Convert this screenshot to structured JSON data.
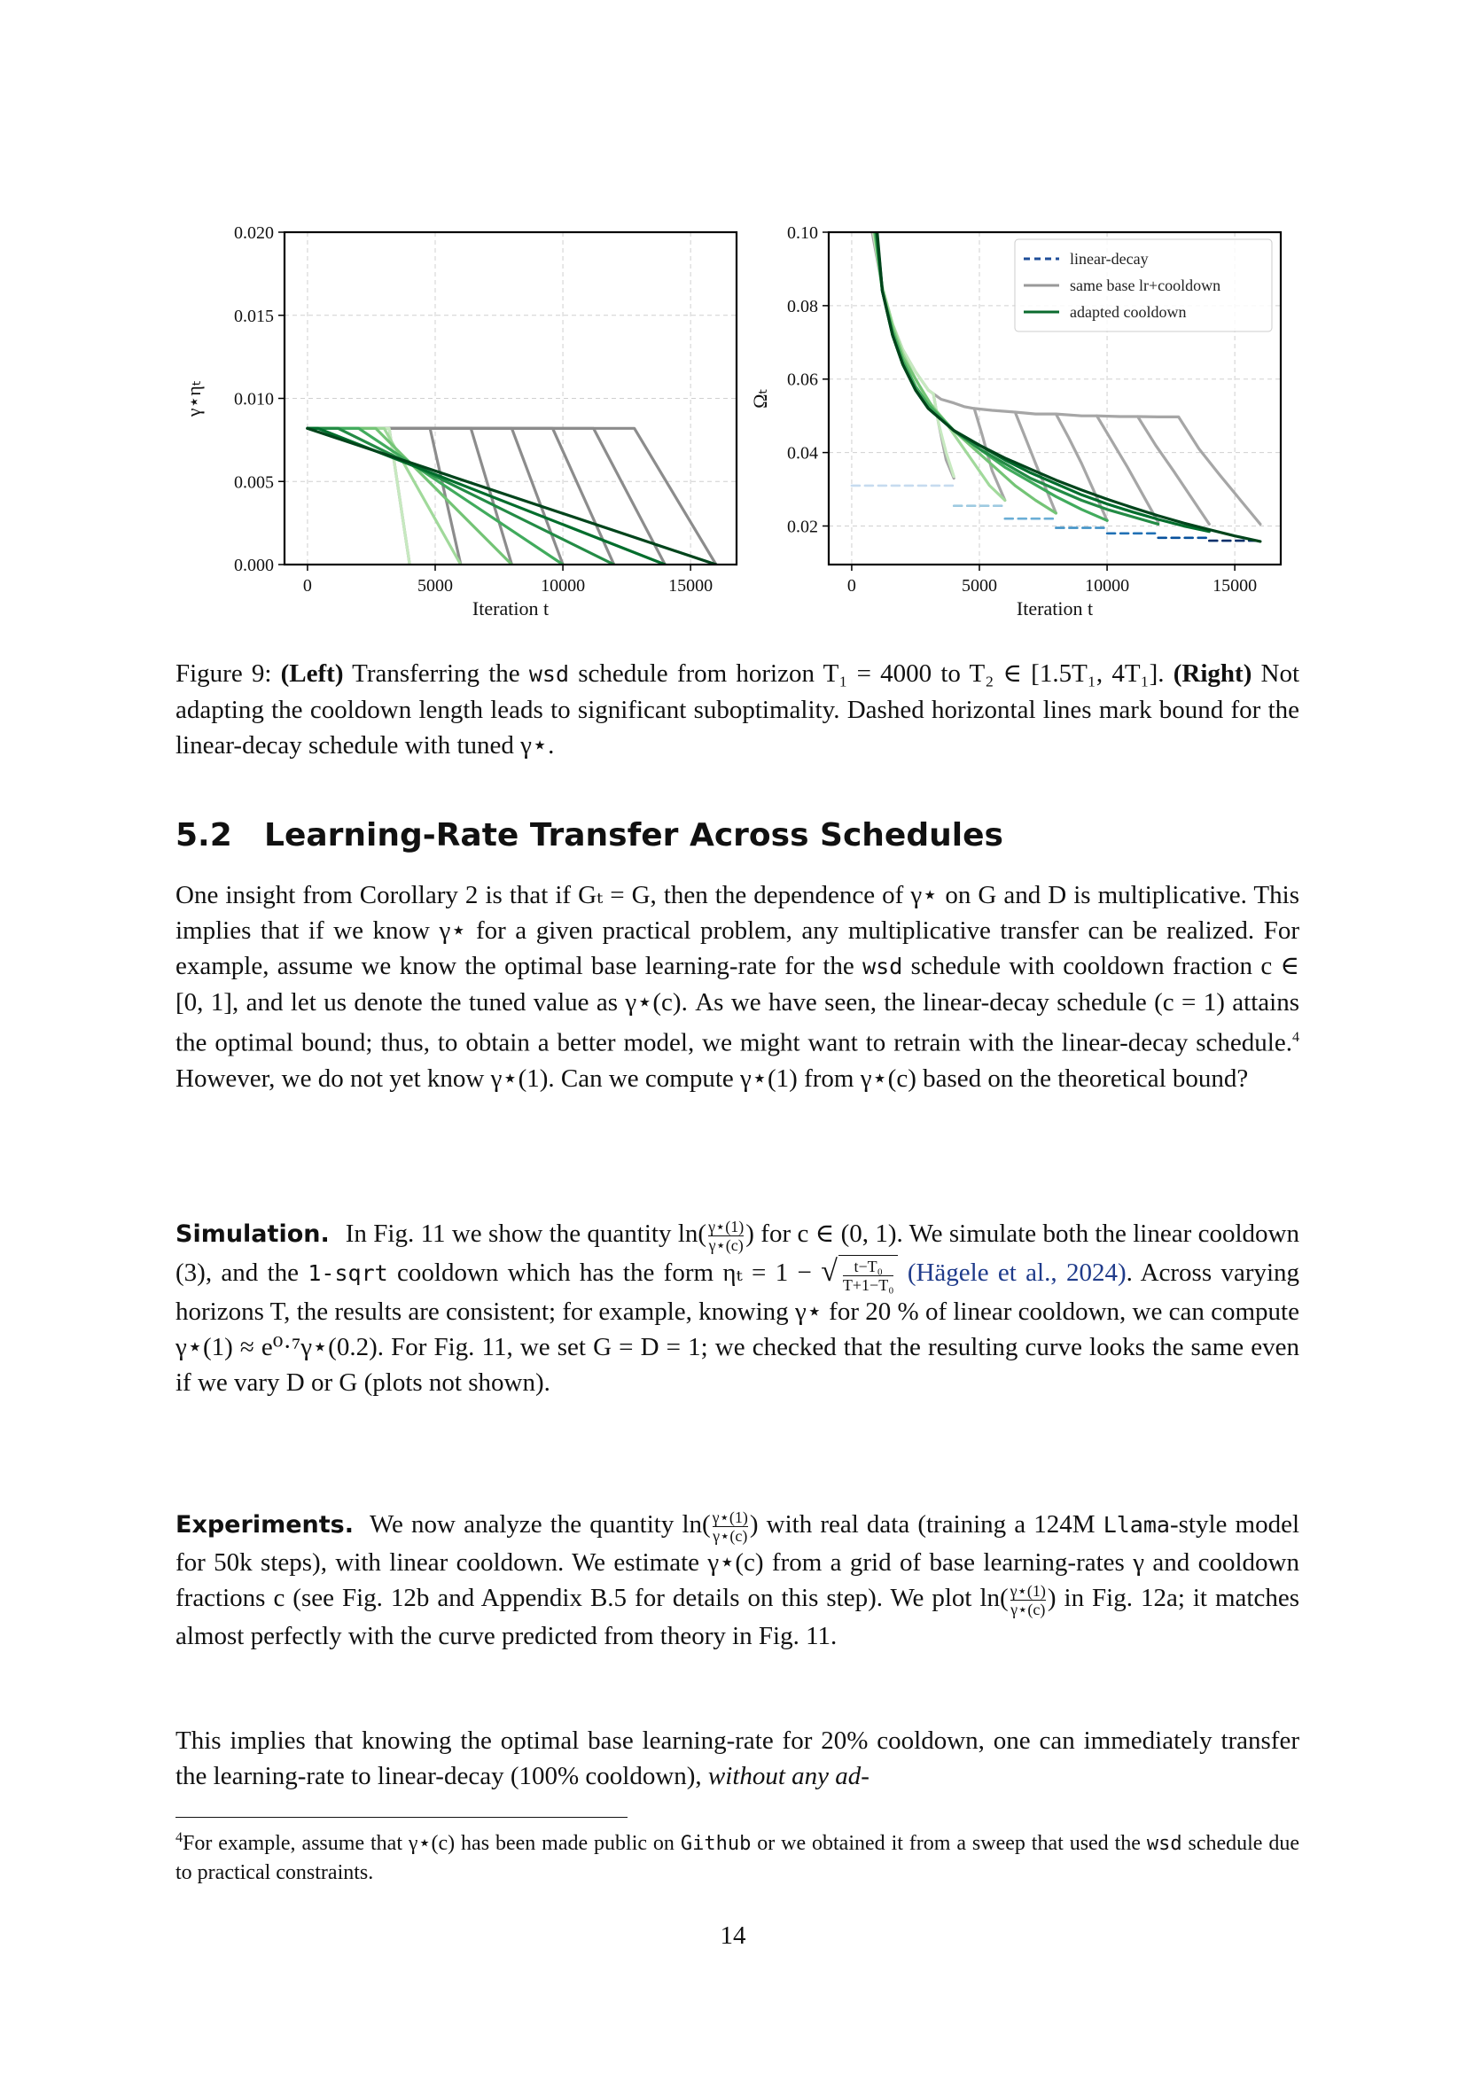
{
  "figure": {
    "caption": {
      "label": "Figure 9:",
      "left_tag": "(Left)",
      "left_text_1": "Transferring the",
      "left_code": "wsd",
      "left_text_2": "schedule from horizon T₁ = 4000 to T₂ ∈ [1.5T₁, 4T₁].",
      "right_tag": "(Right)",
      "right_text": "Not adapting the cooldown length leads to significant suboptimality. Dashed horizontal lines mark bound for the linear-decay schedule with tuned γ⋆."
    }
  },
  "chart_data": [
    {
      "type": "line",
      "panel": "left",
      "ylabel": "γ⋆ηₜ",
      "xlabel": "Iteration t",
      "xlim": [
        -900,
        16800
      ],
      "ylim": [
        0.0,
        0.02
      ],
      "xticks": [
        0,
        5000,
        10000,
        15000
      ],
      "xtick_labels": [
        "0",
        "5000",
        "10000",
        "15000"
      ],
      "yticks": [
        0.0,
        0.005,
        0.01,
        0.015,
        0.02
      ],
      "ytick_labels": [
        "0.000",
        "0.005",
        "0.010",
        "0.015",
        "0.020"
      ],
      "grid": true,
      "series": [
        {
          "group": "gray",
          "color": "#8c8c8c",
          "x": [
            0,
            3200,
            4000
          ],
          "y": [
            0.0082,
            0.0082,
            0.0
          ]
        },
        {
          "group": "gray",
          "color": "#8c8c8c",
          "x": [
            0,
            4800,
            6000
          ],
          "y": [
            0.0082,
            0.0082,
            0.0
          ]
        },
        {
          "group": "gray",
          "color": "#8c8c8c",
          "x": [
            0,
            6400,
            8000
          ],
          "y": [
            0.0082,
            0.0082,
            0.0
          ]
        },
        {
          "group": "gray",
          "color": "#8c8c8c",
          "x": [
            0,
            8000,
            10000
          ],
          "y": [
            0.0082,
            0.0082,
            0.0
          ]
        },
        {
          "group": "gray",
          "color": "#8c8c8c",
          "x": [
            0,
            9600,
            12000
          ],
          "y": [
            0.0082,
            0.0082,
            0.0
          ]
        },
        {
          "group": "gray",
          "color": "#8c8c8c",
          "x": [
            0,
            11200,
            14000
          ],
          "y": [
            0.0082,
            0.0082,
            0.0
          ]
        },
        {
          "group": "gray",
          "color": "#8c8c8c",
          "x": [
            0,
            12800,
            16000
          ],
          "y": [
            0.0082,
            0.0082,
            0.0
          ]
        },
        {
          "group": "green",
          "color": "#c7e9c0",
          "x": [
            0,
            3200,
            4000
          ],
          "y": [
            0.0082,
            0.0082,
            0.0
          ]
        },
        {
          "group": "green",
          "color": "#a1d99b",
          "x": [
            0,
            3000,
            6000
          ],
          "y": [
            0.0082,
            0.0082,
            0.0
          ]
        },
        {
          "group": "green",
          "color": "#74c476",
          "x": [
            0,
            2667,
            8000
          ],
          "y": [
            0.0082,
            0.0082,
            0.0
          ]
        },
        {
          "group": "green",
          "color": "#41ab5d",
          "x": [
            0,
            2000,
            10000
          ],
          "y": [
            0.0082,
            0.0082,
            0.0
          ]
        },
        {
          "group": "green",
          "color": "#238b45",
          "x": [
            0,
            1200,
            12000
          ],
          "y": [
            0.0082,
            0.0082,
            0.0
          ]
        },
        {
          "group": "green",
          "color": "#006d2c",
          "x": [
            0,
            400,
            14000
          ],
          "y": [
            0.0082,
            0.0082,
            0.0
          ]
        },
        {
          "group": "green",
          "color": "#00441b",
          "x": [
            0,
            16000
          ],
          "y": [
            0.0082,
            0.0
          ]
        }
      ]
    },
    {
      "type": "line",
      "panel": "right",
      "ylabel": "Ωₜ",
      "xlabel": "Iteration t",
      "xlim": [
        -900,
        16800
      ],
      "ylim": [
        0.0095,
        0.1
      ],
      "xticks": [
        0,
        5000,
        10000,
        15000
      ],
      "xtick_labels": [
        "0",
        "5000",
        "10000",
        "15000"
      ],
      "yticks": [
        0.02,
        0.04,
        0.06,
        0.08,
        0.1
      ],
      "ytick_labels": [
        "0.02",
        "0.04",
        "0.06",
        "0.08",
        "0.10"
      ],
      "grid": true,
      "legend": {
        "placement": "top-right",
        "entries": [
          {
            "label": "linear-decay",
            "color": "#1f4e99",
            "style": "dashed"
          },
          {
            "label": "same base lr+cooldown",
            "color": "#999999",
            "style": "solid"
          },
          {
            "label": "adapted cooldown",
            "color": "#0b6b2e",
            "style": "solid"
          }
        ]
      },
      "series": [
        {
          "group": "dashed",
          "color": "#c6dbef",
          "x": [
            0,
            4000
          ],
          "y": [
            0.031,
            0.031
          ]
        },
        {
          "group": "dashed",
          "color": "#9ecae1",
          "x": [
            4000,
            6000
          ],
          "y": [
            0.0255,
            0.0255
          ]
        },
        {
          "group": "dashed",
          "color": "#6baed6",
          "x": [
            6000,
            8000
          ],
          "y": [
            0.022,
            0.022
          ]
        },
        {
          "group": "dashed",
          "color": "#4292c6",
          "x": [
            8000,
            10000
          ],
          "y": [
            0.0195,
            0.0195
          ]
        },
        {
          "group": "dashed",
          "color": "#2171b5",
          "x": [
            10000,
            12000
          ],
          "y": [
            0.018,
            0.018
          ]
        },
        {
          "group": "dashed",
          "color": "#08519c",
          "x": [
            12000,
            14000
          ],
          "y": [
            0.0168,
            0.0168
          ]
        },
        {
          "group": "dashed",
          "color": "#08306b",
          "x": [
            14000,
            16000
          ],
          "y": [
            0.016,
            0.016
          ]
        },
        {
          "group": "gray",
          "color": "#a6a6a6",
          "x": [
            800,
            1200,
            1600,
            2000,
            2500,
            3000,
            3200,
            3400,
            3700,
            4000
          ],
          "y": [
            0.1,
            0.085,
            0.075,
            0.068,
            0.062,
            0.057,
            0.056,
            0.048,
            0.038,
            0.033
          ]
        },
        {
          "group": "gray",
          "color": "#a6a6a6",
          "x": [
            3200,
            3500,
            4000,
            4400,
            4800,
            5100,
            5500,
            6000
          ],
          "y": [
            0.056,
            0.0545,
            0.0535,
            0.0525,
            0.052,
            0.045,
            0.035,
            0.027
          ]
        },
        {
          "group": "gray",
          "color": "#a6a6a6",
          "x": [
            4800,
            5500,
            6400,
            6800,
            7200,
            8000
          ],
          "y": [
            0.052,
            0.0515,
            0.051,
            0.044,
            0.037,
            0.0235
          ]
        },
        {
          "group": "gray",
          "color": "#a6a6a6",
          "x": [
            6400,
            7200,
            8000,
            8500,
            9000,
            10000
          ],
          "y": [
            0.051,
            0.0505,
            0.0505,
            0.044,
            0.037,
            0.0215
          ]
        },
        {
          "group": "gray",
          "color": "#a6a6a6",
          "x": [
            8000,
            9000,
            9600,
            10200,
            10800,
            12000
          ],
          "y": [
            0.0505,
            0.05,
            0.05,
            0.043,
            0.036,
            0.021
          ]
        },
        {
          "group": "gray",
          "color": "#a6a6a6",
          "x": [
            9600,
            10500,
            11200,
            11900,
            12600,
            14000
          ],
          "y": [
            0.05,
            0.0498,
            0.0498,
            0.042,
            0.035,
            0.0205
          ]
        },
        {
          "group": "gray",
          "color": "#a6a6a6",
          "x": [
            11200,
            12000,
            12800,
            13600,
            14400,
            16000
          ],
          "y": [
            0.0498,
            0.0497,
            0.0497,
            0.041,
            0.034,
            0.0205
          ]
        },
        {
          "group": "green",
          "color": "#c7e9c0",
          "x": [
            850,
            1200,
            1600,
            2000,
            2500,
            3000,
            3200,
            3400,
            3700,
            4000
          ],
          "y": [
            0.1,
            0.085,
            0.075,
            0.068,
            0.062,
            0.057,
            0.056,
            0.048,
            0.04,
            0.0335
          ]
        },
        {
          "group": "green",
          "color": "#a1d99b",
          "x": [
            880,
            1200,
            1600,
            2000,
            2500,
            3000,
            3600,
            4200,
            4800,
            5400,
            6000
          ],
          "y": [
            0.1,
            0.085,
            0.075,
            0.067,
            0.06,
            0.054,
            0.049,
            0.043,
            0.037,
            0.031,
            0.027
          ]
        },
        {
          "group": "green",
          "color": "#74c476",
          "x": [
            900,
            1200,
            1600,
            2000,
            2667,
            3200,
            4000,
            4800,
            5600,
            6400,
            7200,
            8000
          ],
          "y": [
            0.1,
            0.084,
            0.074,
            0.066,
            0.058,
            0.052,
            0.046,
            0.041,
            0.036,
            0.031,
            0.027,
            0.0235
          ]
        },
        {
          "group": "green",
          "color": "#41ab5d",
          "x": [
            930,
            1200,
            1600,
            2000,
            2500,
            3000,
            4000,
            5000,
            6000,
            7000,
            8000,
            9000,
            10000
          ],
          "y": [
            0.1,
            0.084,
            0.073,
            0.065,
            0.058,
            0.053,
            0.046,
            0.041,
            0.036,
            0.032,
            0.028,
            0.0245,
            0.0215
          ]
        },
        {
          "group": "green",
          "color": "#238b45",
          "x": [
            960,
            1200,
            1600,
            2000,
            2500,
            3000,
            4000,
            5000,
            6000,
            7000,
            8000,
            9000,
            10000,
            11000,
            12000
          ],
          "y": [
            0.1,
            0.084,
            0.072,
            0.064,
            0.057,
            0.052,
            0.046,
            0.041,
            0.037,
            0.033,
            0.03,
            0.027,
            0.0245,
            0.0225,
            0.0205
          ]
        },
        {
          "group": "green",
          "color": "#006d2c",
          "x": [
            980,
            1200,
            1600,
            2000,
            2500,
            3000,
            4000,
            5000,
            6000,
            7000,
            8000,
            9000,
            10000,
            11000,
            12000,
            13000,
            14000
          ],
          "y": [
            0.1,
            0.084,
            0.072,
            0.064,
            0.057,
            0.052,
            0.046,
            0.042,
            0.038,
            0.0345,
            0.0315,
            0.0285,
            0.026,
            0.0238,
            0.0218,
            0.02,
            0.0185
          ]
        },
        {
          "group": "green",
          "color": "#00441b",
          "x": [
            1000,
            1200,
            1600,
            2000,
            2500,
            3000,
            4000,
            5000,
            6000,
            7000,
            8000,
            9000,
            10000,
            11000,
            12000,
            13000,
            14000,
            15000,
            16000
          ],
          "y": [
            0.1,
            0.084,
            0.072,
            0.064,
            0.057,
            0.052,
            0.046,
            0.042,
            0.0385,
            0.0355,
            0.0325,
            0.0298,
            0.0273,
            0.025,
            0.0228,
            0.0208,
            0.019,
            0.0173,
            0.0158
          ]
        }
      ]
    }
  ],
  "section": {
    "number": "5.2",
    "title": "Learning-Rate Transfer Across Schedules"
  },
  "paragraph1": {
    "text": "One insight from Corollary 2 is that if Gₜ = G, then the dependence of γ⋆ on G and D is multiplicative. This implies that if we know γ⋆ for a given practical problem, any multiplicative transfer can be realized. For example, assume we know the optimal base learning-rate for the",
    "code": "wsd",
    "text_2": "schedule with cooldown fraction c ∈ [0, 1], and let us denote the tuned value as γ⋆(c). As we have seen, the linear-decay schedule (c = 1) attains the optimal bound; thus, to obtain a better model, we might want to retrain with the linear-decay schedule.",
    "footnote_mark": "4",
    "text_3": "However, we do not yet know γ⋆(1). Can we compute γ⋆(1) from γ⋆(c) based on the theoretical bound?"
  },
  "paragraph2": {
    "runin": "Simulation.",
    "text_1": "In Fig. 11 we show the quantity ln(",
    "frac_num": "γ⋆(1)",
    "frac_den": "γ⋆(c)",
    "text_2": ") for c ∈ (0, 1). We simulate both the linear cooldown (3), and the",
    "code": "1-sqrt",
    "text_3": "cooldown which has the form ηₜ = 1 −",
    "sqrt_num": "t−T₀",
    "sqrt_den": "T+1−T₀",
    "citation": "(Hägele et al., 2024)",
    "text_4": ". Across varying horizons T, the results are consistent; for example, knowing γ⋆ for 20 % of linear cooldown, we can compute γ⋆(1) ≈ e⁰·⁷γ⋆(0.2). For Fig. 11, we set G = D = 1; we checked that the resulting curve looks the same even if we vary D or G (plots not shown)."
  },
  "paragraph3": {
    "runin": "Experiments.",
    "text_1": "We now analyze the quantity ln(",
    "frac_num": "γ⋆(1)",
    "frac_den": "γ⋆(c)",
    "text_2": ") with real data (training a 124M",
    "code": "Llama",
    "text_3": "-style model for 50k steps), with linear cooldown. We estimate γ⋆(c) from a grid of base learning-rates γ and cooldown fractions c (see Fig. 12b and Appendix B.5 for details on this step). We plot ln(",
    "text_4": ") in Fig. 12a; it matches almost perfectly with the curve predicted from theory in Fig. 11."
  },
  "paragraph4": {
    "text": "This implies that knowing the optimal base learning-rate for 20% cooldown, one can immediately transfer the learning-rate to linear-decay (100% cooldown),",
    "italic": "without any ad-"
  },
  "footnote": {
    "mark": "4",
    "text_1": "For example, assume that γ⋆(c) has been made public on",
    "code_1": "Github",
    "text_2": "or we obtained it from a sweep that used the",
    "code_2": "wsd",
    "text_3": "schedule due to practical constraints."
  },
  "page_number": "14"
}
